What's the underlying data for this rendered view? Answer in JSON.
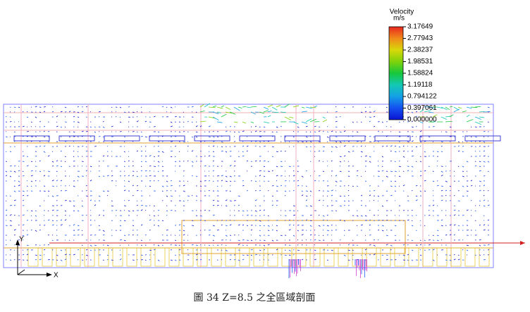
{
  "colorbar": {
    "title": "Velocity",
    "unit": "m/s",
    "labels": [
      "3.17649",
      "2.77943",
      "2.38237",
      "1.98531",
      "1.58824",
      "1.19118",
      "0.794122",
      "0.397061",
      "0.000000"
    ],
    "colors": [
      "#e8261e",
      "#f08a1a",
      "#d8d80a",
      "#7fd20a",
      "#16c83c",
      "#14c8b4",
      "#14a0e6",
      "#1450f0",
      "#0a14d2"
    ]
  },
  "axes": {
    "y": "Y",
    "x": "X"
  },
  "caption": "圖 34 Z=8.5 之全區域剖面"
}
